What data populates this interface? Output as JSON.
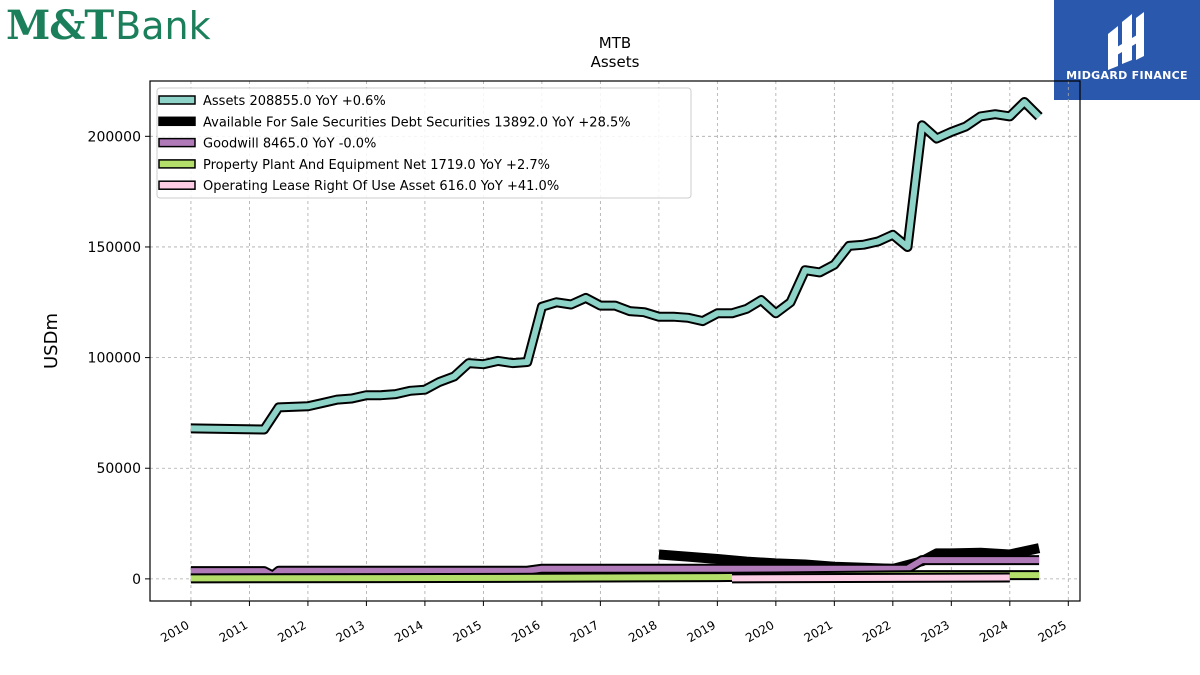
{
  "logos": {
    "left_brand_a": "M&T",
    "left_brand_b": "Bank",
    "right_brand": "MIDGARD FINANCE"
  },
  "chart_data": {
    "type": "line",
    "title": "MTB",
    "subtitle": "Assets",
    "ylabel": "USDm",
    "xlabel": "",
    "xlim": [
      2009.3,
      2025.2
    ],
    "ylim": [
      -10000,
      225000
    ],
    "yticks": [
      0,
      50000,
      100000,
      150000,
      200000
    ],
    "xticks": [
      2010,
      2011,
      2012,
      2013,
      2014,
      2015,
      2016,
      2017,
      2018,
      2019,
      2020,
      2021,
      2022,
      2023,
      2024,
      2025
    ],
    "grid": true,
    "legend_position": "top-left",
    "series": [
      {
        "name": "Assets",
        "legend": "Assets  208855.0 YoY +0.6%",
        "color": "#8dd3c7",
        "x": [
          2010.0,
          2011.25,
          2011.5,
          2012.0,
          2012.25,
          2012.5,
          2012.75,
          2013.0,
          2013.25,
          2013.5,
          2013.75,
          2014.0,
          2014.25,
          2014.5,
          2014.75,
          2015.0,
          2015.25,
          2015.5,
          2015.75,
          2016.0,
          2016.25,
          2016.5,
          2016.75,
          2017.0,
          2017.25,
          2017.5,
          2017.75,
          2018.0,
          2018.25,
          2018.5,
          2018.75,
          2019.0,
          2019.25,
          2019.5,
          2019.75,
          2020.0,
          2020.25,
          2020.5,
          2020.75,
          2021.0,
          2021.25,
          2021.5,
          2021.75,
          2022.0,
          2022.25,
          2022.5,
          2022.75,
          2023.0,
          2023.25,
          2023.5,
          2023.75,
          2024.0,
          2024.25,
          2024.5
        ],
        "y": [
          68000,
          67500,
          77500,
          78000,
          79500,
          81000,
          81500,
          83000,
          83000,
          83500,
          85000,
          85500,
          89000,
          91500,
          97500,
          97000,
          98500,
          97500,
          98000,
          123000,
          125000,
          124000,
          127000,
          123500,
          123500,
          121000,
          120500,
          118500,
          118500,
          118000,
          116500,
          120000,
          120000,
          122000,
          126000,
          120000,
          125000,
          139500,
          138500,
          142000,
          150500,
          151000,
          152500,
          155500,
          150000,
          205000,
          199000,
          202000,
          204500,
          209000,
          210000,
          209000,
          215500,
          208855
        ]
      },
      {
        "name": "Available For Sale Securities Debt Securities",
        "legend": "Available For Sale Securities Debt Securities  13892.0 YoY +28.5%",
        "color": "#000000",
        "x": [
          2018.0,
          2018.5,
          2019.0,
          2019.5,
          2020.0,
          2020.5,
          2021.0,
          2021.5,
          2022.0,
          2022.5,
          2022.75,
          2023.0,
          2023.5,
          2024.0,
          2024.5
        ],
        "y": [
          11000,
          10000,
          9000,
          7800,
          7000,
          6500,
          5500,
          5000,
          4500,
          8000,
          11500,
          11500,
          11800,
          11000,
          13892
        ]
      },
      {
        "name": "Goodwill",
        "legend": "Goodwill  8465.0 YoY -0.0%",
        "color": "#b07ab8",
        "x": [
          2010.0,
          2011.25,
          2011.4,
          2011.5,
          2015.75,
          2016.0,
          2022.25,
          2022.5,
          2024.5
        ],
        "y": [
          3500,
          3500,
          1500,
          3700,
          3700,
          4600,
          4600,
          8465,
          8465
        ]
      },
      {
        "name": "Property Plant And Equipment Net",
        "legend": "Property Plant And Equipment Net  1719.0 YoY +2.7%",
        "color": "#b3de69",
        "x": [
          2010.0,
          2016.0,
          2019.0,
          2022.5,
          2024.5
        ],
        "y": [
          200,
          500,
          800,
          1700,
          1719
        ]
      },
      {
        "name": "Operating Lease Right Of Use Asset",
        "legend": "Operating Lease Right Of Use Asset  616.0 YoY +41.0%",
        "color": "#fccde5",
        "x": [
          2019.25,
          2024.0
        ],
        "y": [
          200,
          616
        ]
      }
    ]
  }
}
